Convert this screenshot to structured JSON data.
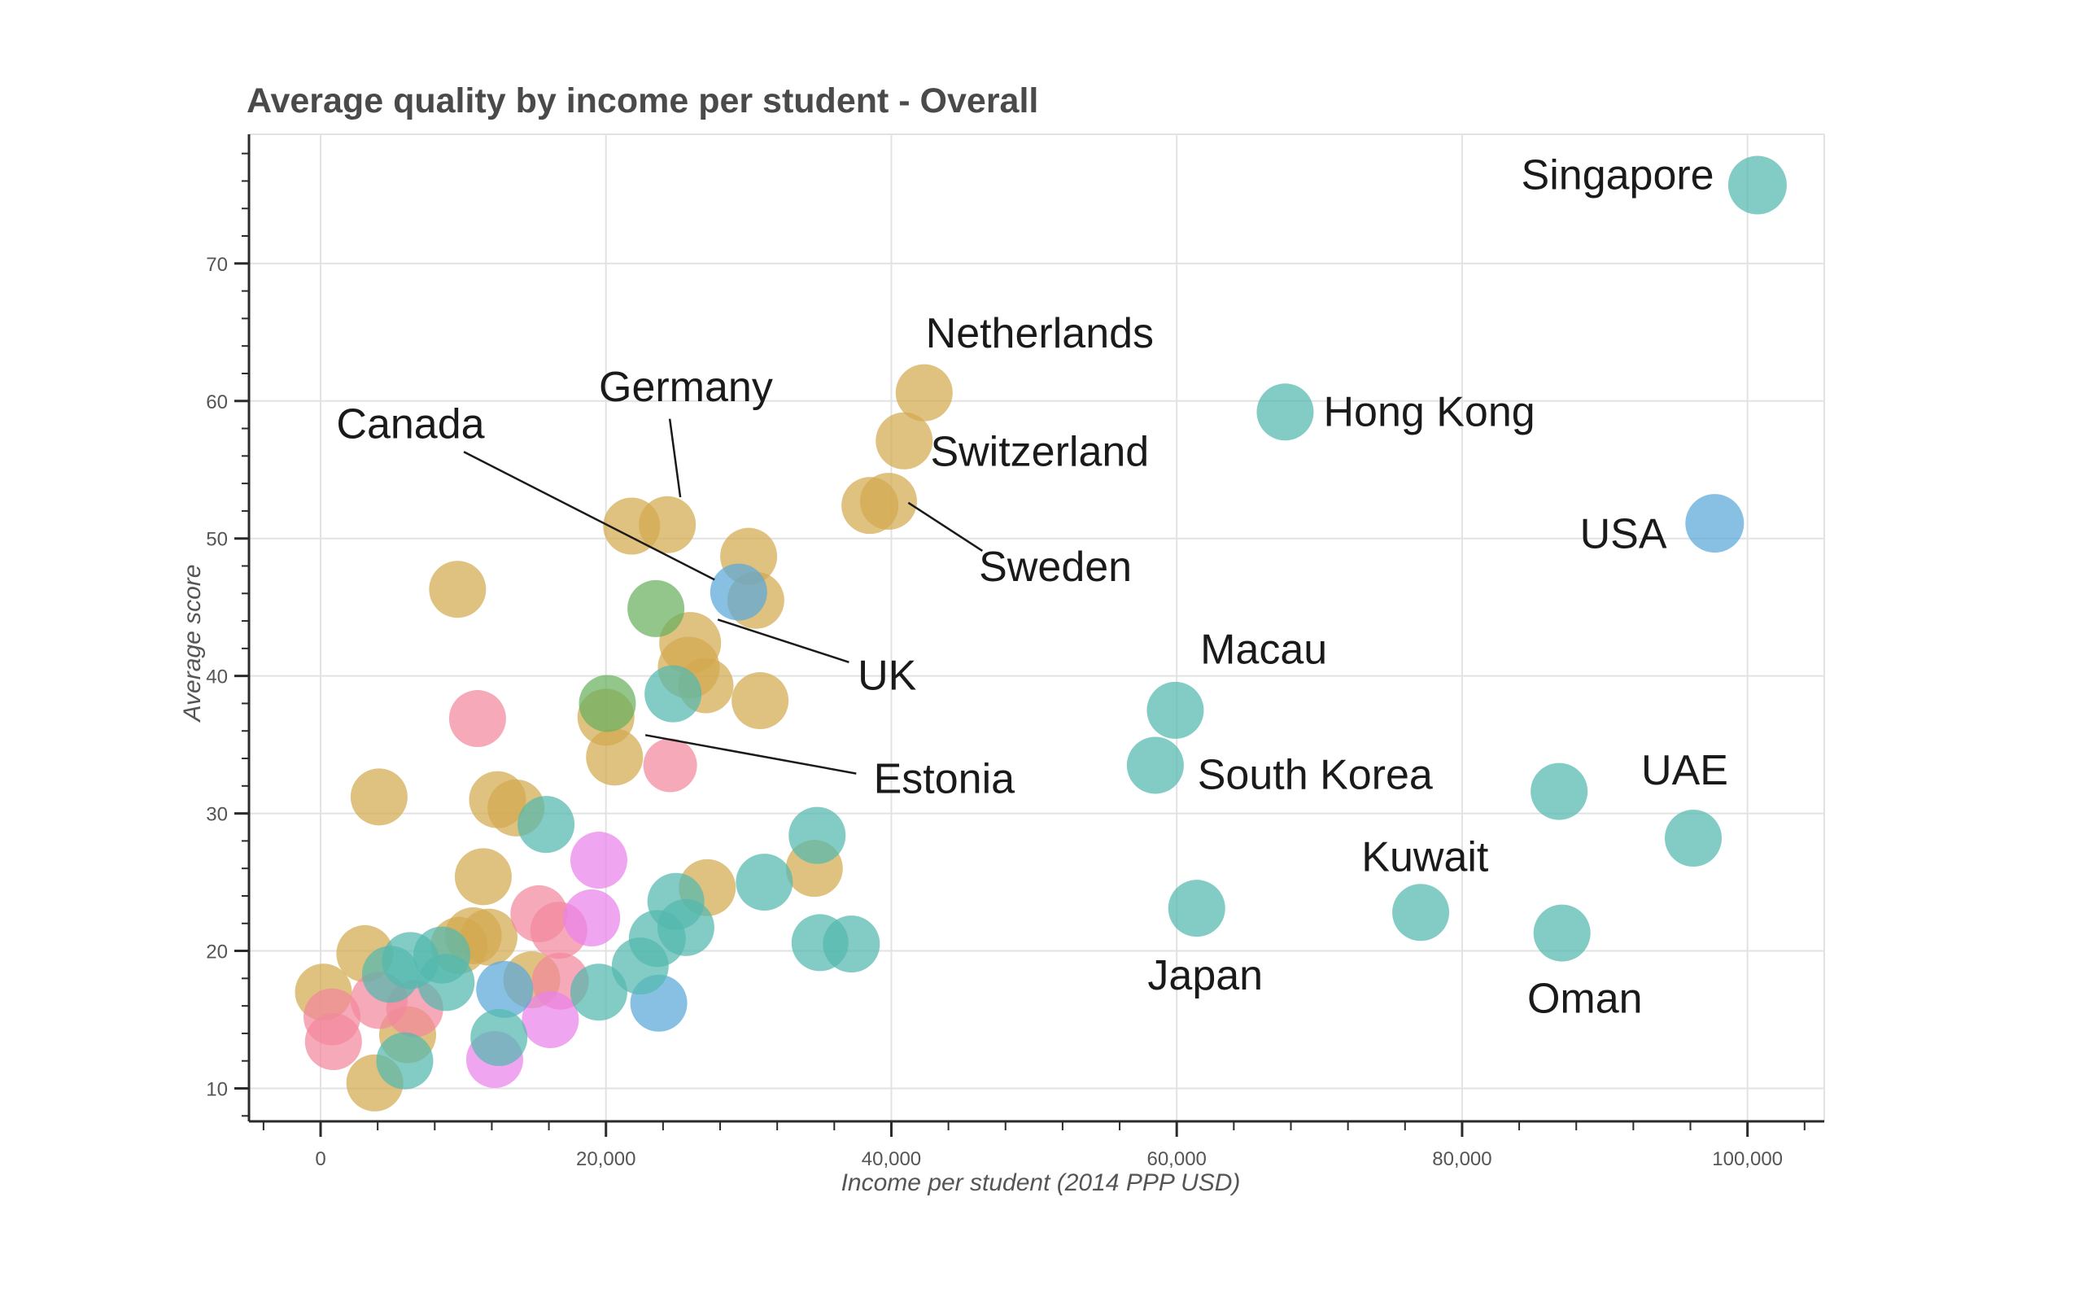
{
  "title": "Average quality by income per student - Overall",
  "chart_data": {
    "type": "scatter",
    "title": "Average quality by income per student - Overall",
    "xlabel": "Income per student (2014 PPP USD)",
    "ylabel": "Average score",
    "xlim": [
      -4900,
      105400
    ],
    "ylim": [
      7.6,
      79.4
    ],
    "grid": true,
    "x_ticks": [
      0,
      20000,
      40000,
      60000,
      80000,
      100000
    ],
    "x_tick_labels": [
      "0",
      "20,000",
      "40,000",
      "60,000",
      "80,000",
      "100,000"
    ],
    "x_minor_step": 4000,
    "y_ticks": [
      10,
      20,
      30,
      40,
      50,
      60,
      70
    ],
    "y_minor_step": 2,
    "opacity": 0.72,
    "default_radius": 35,
    "colors": {
      "tan": "#d2a94f",
      "teal": "#53b8af",
      "blue": "#5aa7d8",
      "green": "#6ab05e",
      "pink": "#f2889c",
      "magenta": "#ea82ec"
    },
    "draw_order": [
      "tan",
      "green",
      "pink",
      "magenta",
      "blue",
      "teal"
    ],
    "points": [
      {
        "x": 42300,
        "y": 60.6,
        "c": "tan",
        "label": "Netherlands"
      },
      {
        "x": 40900,
        "y": 57.1,
        "c": "tan",
        "label": "Switzerland"
      },
      {
        "x": 39800,
        "y": 52.7,
        "c": "tan",
        "label": "Sweden"
      },
      {
        "x": 38500,
        "y": 52.4,
        "c": "tan"
      },
      {
        "x": 24300,
        "y": 51.0,
        "c": "tan",
        "label": "Germany"
      },
      {
        "x": 21800,
        "y": 50.9,
        "c": "tan"
      },
      {
        "x": 30000,
        "y": 48.7,
        "c": "tan"
      },
      {
        "x": 30500,
        "y": 45.5,
        "c": "tan"
      },
      {
        "x": 25900,
        "y": 42.4,
        "c": "tan",
        "label": "UK",
        "r": 38
      },
      {
        "x": 25800,
        "y": 40.6,
        "c": "tan",
        "r": 38
      },
      {
        "x": 27000,
        "y": 39.3,
        "c": "tan",
        "r": 34
      },
      {
        "x": 30800,
        "y": 38.2,
        "c": "tan"
      },
      {
        "x": 20000,
        "y": 37.0,
        "c": "tan"
      },
      {
        "x": 20600,
        "y": 34.1,
        "c": "tan"
      },
      {
        "x": 9600,
        "y": 46.3,
        "c": "tan"
      },
      {
        "x": 4100,
        "y": 31.2,
        "c": "tan"
      },
      {
        "x": 12400,
        "y": 31.0,
        "c": "tan"
      },
      {
        "x": 13700,
        "y": 30.4,
        "c": "tan"
      },
      {
        "x": 11400,
        "y": 25.4,
        "c": "tan"
      },
      {
        "x": 34600,
        "y": 26.0,
        "c": "tan"
      },
      {
        "x": 27100,
        "y": 24.6,
        "c": "tan"
      },
      {
        "x": 14800,
        "y": 17.9,
        "c": "tan"
      },
      {
        "x": 10700,
        "y": 21.1,
        "c": "tan"
      },
      {
        "x": 11800,
        "y": 21.0,
        "c": "tan"
      },
      {
        "x": 9700,
        "y": 20.4,
        "c": "tan"
      },
      {
        "x": 3100,
        "y": 19.8,
        "c": "tan"
      },
      {
        "x": 6100,
        "y": 13.9,
        "c": "tan"
      },
      {
        "x": 3800,
        "y": 10.4,
        "c": "tan"
      },
      {
        "x": 200,
        "y": 17.0,
        "c": "tan"
      },
      {
        "x": 23500,
        "y": 44.9,
        "c": "green"
      },
      {
        "x": 20100,
        "y": 38.0,
        "c": "green"
      },
      {
        "x": 24500,
        "y": 33.5,
        "c": "pink",
        "label": "Estonia",
        "r": 33
      },
      {
        "x": 11000,
        "y": 36.9,
        "c": "pink"
      },
      {
        "x": 15300,
        "y": 22.7,
        "c": "pink"
      },
      {
        "x": 16800,
        "y": 17.8,
        "c": "pink"
      },
      {
        "x": 16700,
        "y": 21.5,
        "c": "pink"
      },
      {
        "x": 6600,
        "y": 15.8,
        "c": "pink"
      },
      {
        "x": 4100,
        "y": 16.4,
        "c": "pink"
      },
      {
        "x": 800,
        "y": 15.2,
        "c": "pink"
      },
      {
        "x": 900,
        "y": 13.4,
        "c": "pink"
      },
      {
        "x": 19500,
        "y": 26.6,
        "c": "magenta"
      },
      {
        "x": 19000,
        "y": 22.4,
        "c": "magenta"
      },
      {
        "x": 16100,
        "y": 15.0,
        "c": "magenta"
      },
      {
        "x": 12200,
        "y": 12.1,
        "c": "magenta"
      },
      {
        "x": 97700,
        "y": 51.1,
        "c": "blue",
        "label": "USA",
        "r": 36
      },
      {
        "x": 29300,
        "y": 46.1,
        "c": "blue",
        "label": "Canada"
      },
      {
        "x": 23700,
        "y": 16.2,
        "c": "blue"
      },
      {
        "x": 12900,
        "y": 17.2,
        "c": "blue"
      },
      {
        "x": 100700,
        "y": 75.7,
        "c": "teal",
        "label": "Singapore",
        "r": 36
      },
      {
        "x": 67600,
        "y": 59.2,
        "c": "teal",
        "label": "Hong Kong"
      },
      {
        "x": 59900,
        "y": 37.5,
        "c": "teal",
        "label": "Macau"
      },
      {
        "x": 58500,
        "y": 33.5,
        "c": "teal",
        "label": "South Korea"
      },
      {
        "x": 61400,
        "y": 23.1,
        "c": "teal",
        "label": "Japan"
      },
      {
        "x": 77100,
        "y": 22.8,
        "c": "teal",
        "label": "Kuwait"
      },
      {
        "x": 96200,
        "y": 28.2,
        "c": "teal",
        "label": "UAE"
      },
      {
        "x": 87000,
        "y": 21.3,
        "c": "teal",
        "label": "Oman"
      },
      {
        "x": 86800,
        "y": 31.6,
        "c": "teal"
      },
      {
        "x": 34800,
        "y": 28.4,
        "c": "teal"
      },
      {
        "x": 31100,
        "y": 25.0,
        "c": "teal"
      },
      {
        "x": 24900,
        "y": 23.6,
        "c": "teal"
      },
      {
        "x": 25600,
        "y": 21.7,
        "c": "teal"
      },
      {
        "x": 23600,
        "y": 20.9,
        "c": "teal"
      },
      {
        "x": 35000,
        "y": 20.6,
        "c": "teal"
      },
      {
        "x": 37200,
        "y": 20.5,
        "c": "teal"
      },
      {
        "x": 24700,
        "y": 38.7,
        "c": "teal"
      },
      {
        "x": 15800,
        "y": 29.2,
        "c": "teal"
      },
      {
        "x": 19500,
        "y": 17.0,
        "c": "teal"
      },
      {
        "x": 22400,
        "y": 18.9,
        "c": "teal"
      },
      {
        "x": 12500,
        "y": 13.7,
        "c": "teal"
      },
      {
        "x": 8500,
        "y": 19.7,
        "c": "teal"
      },
      {
        "x": 8800,
        "y": 17.7,
        "c": "teal"
      },
      {
        "x": 4900,
        "y": 18.3,
        "c": "teal"
      },
      {
        "x": 6300,
        "y": 19.3,
        "c": "teal"
      },
      {
        "x": 5900,
        "y": 12.0,
        "c": "teal"
      }
    ],
    "annotations": [
      {
        "text": "Singapore",
        "x": 90900,
        "y": 76.4
      },
      {
        "text": "Netherlands",
        "x": 50400,
        "y": 64.9
      },
      {
        "text": "Germany",
        "x": 25600,
        "y": 61.0,
        "line": {
          "x1": 24470,
          "y1": 58.7,
          "x2": 25210,
          "y2": 53.0
        }
      },
      {
        "text": "Canada",
        "x": 6300,
        "y": 58.3,
        "line": {
          "x1": 10040,
          "y1": 56.3,
          "x2": 27610,
          "y2": 47.0
        }
      },
      {
        "text": "Switzerland",
        "x": 50400,
        "y": 56.3
      },
      {
        "text": "Hong Kong",
        "x": 77700,
        "y": 59.2
      },
      {
        "text": "Sweden",
        "x": 51500,
        "y": 47.9,
        "line": {
          "x1": 46380,
          "y1": 49.1,
          "x2": 41190,
          "y2": 52.6
        }
      },
      {
        "text": "USA",
        "x": 91300,
        "y": 50.3
      },
      {
        "text": "UK",
        "x": 39700,
        "y": 40.0,
        "line": {
          "x1": 37030,
          "y1": 41.0,
          "x2": 27840,
          "y2": 44.1
        }
      },
      {
        "text": "Macau",
        "x": 66100,
        "y": 41.9
      },
      {
        "text": "Estonia",
        "x": 43700,
        "y": 32.5,
        "line": {
          "x1": 37540,
          "y1": 32.9,
          "x2": 22760,
          "y2": 35.7
        }
      },
      {
        "text": "South Korea",
        "x": 69700,
        "y": 32.8
      },
      {
        "text": "UAE",
        "x": 95600,
        "y": 33.1
      },
      {
        "text": "Kuwait",
        "x": 77400,
        "y": 26.8
      },
      {
        "text": "Japan",
        "x": 62000,
        "y": 18.2
      },
      {
        "text": "Oman",
        "x": 88600,
        "y": 16.5
      }
    ]
  }
}
